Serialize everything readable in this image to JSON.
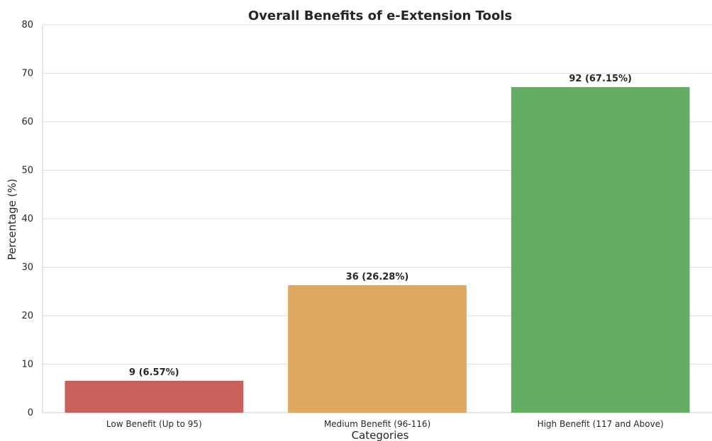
{
  "chart_data": {
    "type": "bar",
    "title": "Overall Benefits of e-Extension Tools",
    "xlabel": "Categories",
    "ylabel": "Percentage (%)",
    "ylim": [
      0,
      80
    ],
    "yticks": [
      0,
      10,
      20,
      30,
      40,
      50,
      60,
      70,
      80
    ],
    "grid": true,
    "categories": [
      "Low Benefit (Up to 95)",
      "Medium Benefit (96-116)",
      "High Benefit (117 and Above)"
    ],
    "values": [
      6.57,
      26.28,
      67.15
    ],
    "data_labels": [
      "9 (6.57%)",
      "36 (26.28%)",
      "92 (67.15%)"
    ],
    "colors": [
      "#c9605a",
      "#dea760",
      "#63ad63"
    ]
  }
}
